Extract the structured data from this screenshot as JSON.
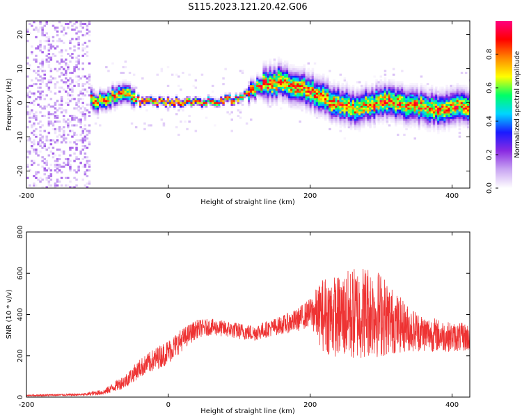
{
  "title": "S115.2023.121.20.42.G06",
  "chart_data": [
    {
      "type": "heatmap",
      "xlabel": "Height of straight line (km)",
      "ylabel": "Frequency (Hz)",
      "xlim": [
        -200,
        425
      ],
      "ylim": [
        -25,
        24
      ],
      "xticks": [
        -200,
        0,
        200,
        400
      ],
      "yticks": [
        -20,
        -10,
        0,
        10,
        20
      ],
      "colorbar": {
        "label": "Normalized spectral amplitude",
        "ticks": [
          "0.0",
          "0.2",
          "0.4",
          "0.6",
          "0.8"
        ],
        "range": [
          0,
          1
        ],
        "colors": [
          "#ffffff",
          "#c9a6f2",
          "#8a2be2",
          "#1a1aff",
          "#00d5ff",
          "#00ff66",
          "#ffff00",
          "#ff8800",
          "#ff0000",
          "#ff0080"
        ]
      },
      "ridge": {
        "x": [
          -130,
          -100,
          -60,
          -40,
          -20,
          0,
          50,
          100,
          130,
          160,
          200,
          230,
          260,
          300,
          340,
          380,
          425
        ],
        "y": [
          3,
          0,
          3,
          0,
          0,
          0,
          0,
          1,
          5,
          6,
          3,
          0,
          -2,
          0,
          -1,
          -2,
          -1
        ]
      }
    },
    {
      "type": "line",
      "xlabel": "Height of straight line (km)",
      "ylabel": "SNR (10 * v/v)",
      "xlim": [
        -200,
        425
      ],
      "ylim": [
        0,
        800
      ],
      "xticks": [
        -200,
        0,
        200,
        400
      ],
      "yticks": [
        0,
        200,
        400,
        600,
        800
      ],
      "color": "#ee3333",
      "envelope": {
        "x": [
          -200,
          -120,
          -90,
          -60,
          -40,
          -20,
          0,
          20,
          40,
          60,
          80,
          100,
          120,
          140,
          160,
          180,
          200,
          220,
          240,
          260,
          280,
          300,
          320,
          340,
          360,
          380,
          400,
          425
        ],
        "mean": [
          8,
          12,
          25,
          80,
          140,
          180,
          220,
          280,
          330,
          340,
          330,
          320,
          310,
          330,
          350,
          370,
          410,
          400,
          390,
          400,
          420,
          400,
          360,
          330,
          310,
          300,
          290,
          290
        ],
        "amplitude": [
          4,
          6,
          15,
          35,
          45,
          55,
          60,
          55,
          45,
          40,
          40,
          40,
          40,
          40,
          45,
          55,
          70,
          190,
          200,
          230,
          230,
          210,
          150,
          110,
          90,
          80,
          70,
          70
        ]
      }
    }
  ]
}
